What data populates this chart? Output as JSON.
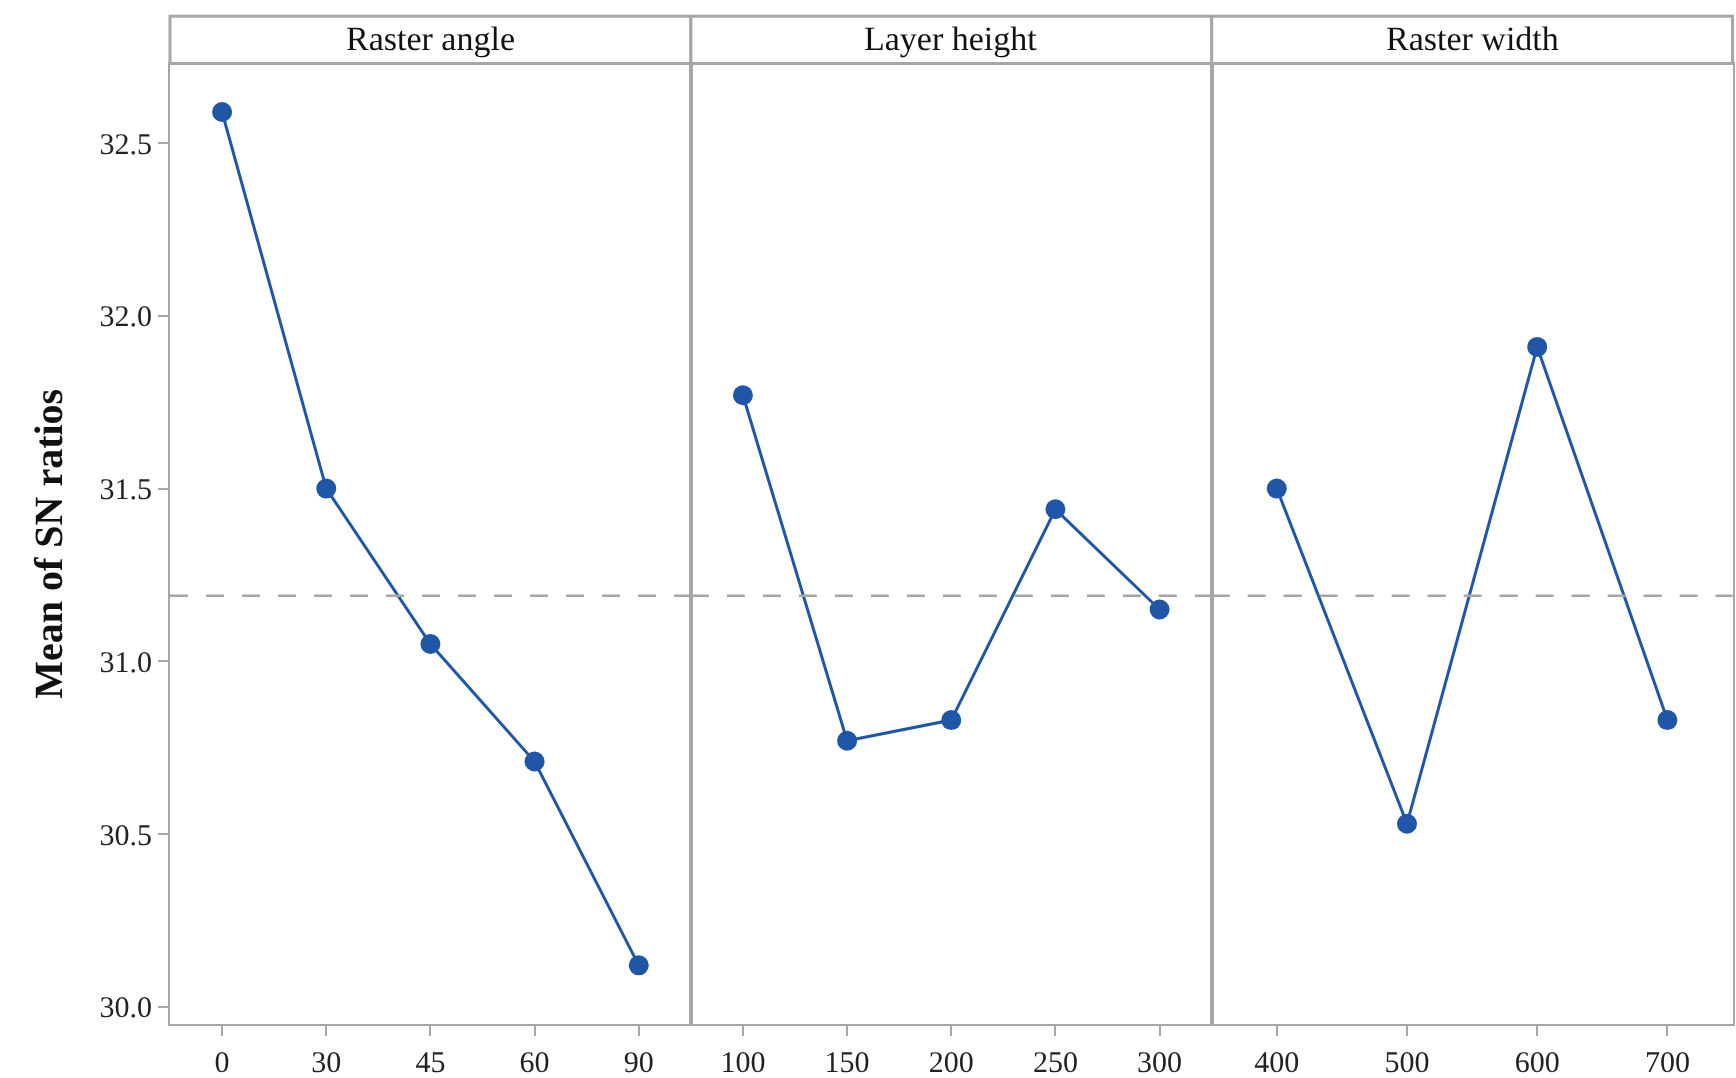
{
  "chart_data": [
    {
      "type": "line",
      "title": "Raster angle",
      "ylabel": "Mean of SN ratios",
      "categories": [
        "0",
        "30",
        "45",
        "60",
        "90"
      ],
      "series": [
        {
          "color": "#1f56a8",
          "values": [
            32.59,
            31.5,
            31.05,
            30.71,
            30.12
          ]
        }
      ],
      "ylim": [
        29.95,
        32.73
      ],
      "yticks": [
        {
          "value": 30,
          "label": "30.0"
        },
        30.5,
        {
          "value": 31,
          "label": "31.0"
        },
        31.5,
        {
          "value": 32,
          "label": "32.0"
        },
        32.5
      ],
      "ref_lines": [
        {
          "axis": "y",
          "value": 31.19,
          "color": "#a6a6a6",
          "line_style": "dashed"
        }
      ],
      "marker": "circle",
      "line_style": "solid"
    },
    {
      "type": "line",
      "title": "Layer height",
      "categories": [
        "100",
        "150",
        "200",
        "250",
        "300"
      ],
      "series": [
        {
          "color": "#1f56a8",
          "values": [
            31.77,
            30.77,
            30.83,
            31.44,
            31.15
          ]
        }
      ],
      "ylim": [
        29.95,
        32.73
      ],
      "tick_labels": "x",
      "ref_lines": [
        {
          "axis": "y",
          "value": 31.19,
          "color": "#a6a6a6",
          "line_style": "dashed"
        }
      ],
      "marker": "circle",
      "line_style": "solid"
    },
    {
      "type": "line",
      "title": "Raster width",
      "categories": [
        "400",
        "500",
        "600",
        "700"
      ],
      "series": [
        {
          "color": "#1f56a8",
          "values": [
            31.5,
            30.53,
            31.91,
            30.83
          ]
        }
      ],
      "ylim": [
        29.95,
        32.73
      ],
      "tick_labels": "x",
      "ref_lines": [
        {
          "axis": "y",
          "value": 31.19,
          "color": "#a6a6a6",
          "line_style": "dashed"
        }
      ],
      "marker": "circle",
      "line_style": "solid"
    }
  ]
}
